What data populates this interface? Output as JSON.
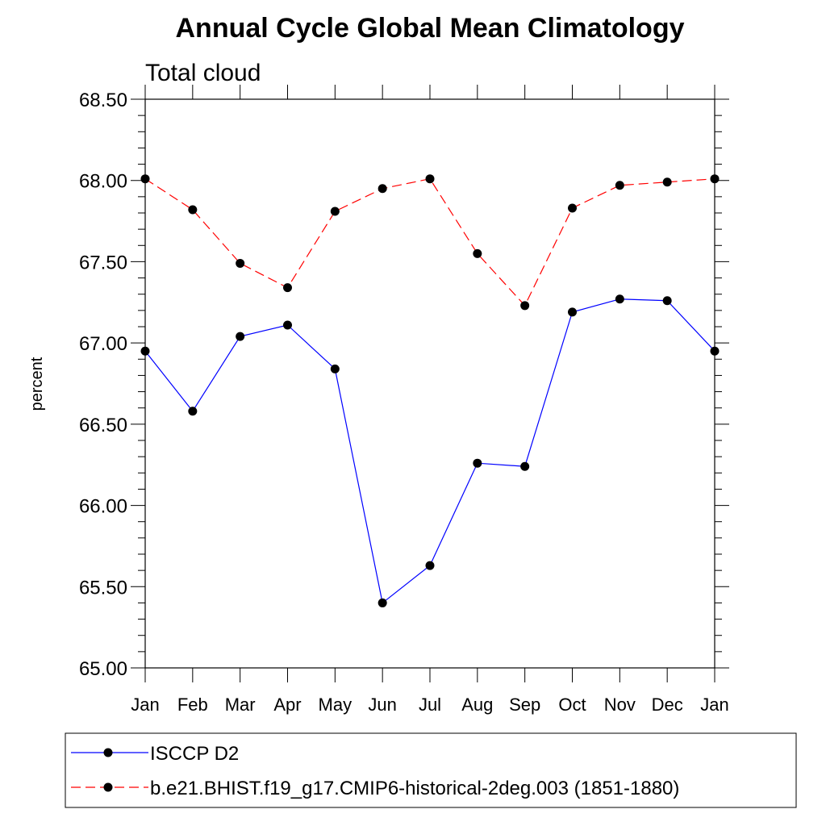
{
  "chart_data": {
    "type": "line",
    "title": "Annual Cycle Global Mean Climatology",
    "subtitle": "Total cloud",
    "ylabel": "percent",
    "xlabel": "",
    "categories": [
      "Jan",
      "Feb",
      "Mar",
      "Apr",
      "May",
      "Jun",
      "Jul",
      "Aug",
      "Sep",
      "Oct",
      "Nov",
      "Dec",
      "Jan"
    ],
    "ylim": [
      65.0,
      68.5
    ],
    "yticks": [
      "65.00",
      "65.50",
      "66.00",
      "66.50",
      "67.00",
      "67.50",
      "68.00",
      "68.50"
    ],
    "legend_position": "bottom",
    "series": [
      {
        "name": "ISCCP D2",
        "color": "#0000ff",
        "line_style": "solid",
        "marker": "filled-circle",
        "values": [
          66.95,
          66.58,
          67.04,
          67.11,
          66.84,
          65.4,
          65.63,
          66.26,
          66.24,
          67.19,
          67.27,
          67.26,
          66.95
        ]
      },
      {
        "name": "b.e21.BHIST.f19_g17.CMIP6-historical-2deg.003 (1851-1880)",
        "color": "#ff0000",
        "line_style": "dashed",
        "marker": "filled-circle",
        "values": [
          68.01,
          67.82,
          67.49,
          67.34,
          67.81,
          67.95,
          68.01,
          67.55,
          67.23,
          67.83,
          67.97,
          67.99,
          68.01
        ]
      }
    ]
  }
}
